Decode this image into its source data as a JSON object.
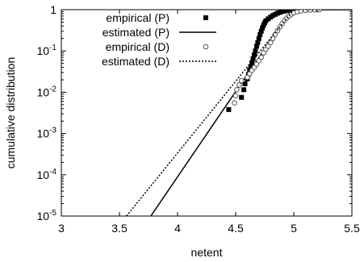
{
  "chart_data": {
    "type": "scatter",
    "xlabel": "netent",
    "ylabel": "cumulative distribution",
    "xlim": [
      3,
      5.5
    ],
    "ylim": [
      1e-05,
      1
    ],
    "yscale": "log",
    "x_ticks": [
      3,
      3.5,
      4,
      4.5,
      5,
      5.5
    ],
    "x_tick_labels": [
      "3",
      "3.5",
      "4",
      "4.5",
      "5",
      "5.5"
    ],
    "y_ticks": [
      1e-05,
      0.0001,
      0.001,
      0.01,
      0.1,
      1
    ],
    "y_tick_labels": [
      {
        "base": "10",
        "exp": "-5"
      },
      {
        "base": "10",
        "exp": "-4"
      },
      {
        "base": "10",
        "exp": "-3"
      },
      {
        "base": "10",
        "exp": "-2"
      },
      {
        "base": "10",
        "exp": "-1"
      },
      {
        "base": "1",
        "exp": ""
      }
    ],
    "grid": false,
    "legend_position": "top-left",
    "series": [
      {
        "name": "empirical (P)",
        "kind": "points",
        "marker": "filled-square",
        "color": "#000000",
        "points": [
          [
            4.44,
            0.0038
          ],
          [
            4.55,
            0.0075
          ],
          [
            4.57,
            0.0115
          ],
          [
            4.58,
            0.016
          ],
          [
            4.6,
            0.021
          ],
          [
            4.61,
            0.027
          ],
          [
            4.62,
            0.034
          ],
          [
            4.63,
            0.042
          ],
          [
            4.64,
            0.052
          ],
          [
            4.65,
            0.065
          ],
          [
            4.66,
            0.08
          ],
          [
            4.67,
            0.1
          ],
          [
            4.68,
            0.13
          ],
          [
            4.69,
            0.16
          ],
          [
            4.7,
            0.2
          ],
          [
            4.71,
            0.25
          ],
          [
            4.72,
            0.3
          ],
          [
            4.73,
            0.36
          ],
          [
            4.74,
            0.42
          ],
          [
            4.75,
            0.48
          ],
          [
            4.76,
            0.54
          ],
          [
            4.78,
            0.6
          ],
          [
            4.8,
            0.66
          ],
          [
            4.82,
            0.72
          ],
          [
            4.84,
            0.77
          ],
          [
            4.86,
            0.82
          ],
          [
            4.88,
            0.86
          ],
          [
            4.9,
            0.9
          ],
          [
            4.92,
            0.93
          ],
          [
            4.95,
            0.96
          ],
          [
            4.98,
            0.98
          ],
          [
            5.01,
            0.99
          ],
          [
            5.05,
            0.995
          ],
          [
            5.1,
            0.998
          ],
          [
            5.2,
            1.0
          ]
        ]
      },
      {
        "name": "estimated (P)",
        "kind": "line",
        "dash": "solid",
        "color": "#000000",
        "points": [
          [
            3.77,
            1e-05
          ],
          [
            4.98,
            1.0
          ],
          [
            5.5,
            1.0
          ]
        ]
      },
      {
        "name": "empirical (D)",
        "kind": "points",
        "marker": "open-circle",
        "color": "#555555",
        "points": [
          [
            4.49,
            0.0055
          ],
          [
            4.5,
            0.0082
          ],
          [
            4.51,
            0.0115
          ],
          [
            4.53,
            0.015
          ],
          [
            4.55,
            0.019
          ],
          [
            4.6,
            0.023
          ],
          [
            4.62,
            0.028
          ],
          [
            4.64,
            0.034
          ],
          [
            4.66,
            0.04
          ],
          [
            4.68,
            0.048
          ],
          [
            4.7,
            0.058
          ],
          [
            4.72,
            0.07
          ],
          [
            4.74,
            0.09
          ],
          [
            4.76,
            0.11
          ],
          [
            4.78,
            0.13
          ],
          [
            4.8,
            0.16
          ],
          [
            4.82,
            0.2
          ],
          [
            4.84,
            0.25
          ],
          [
            4.86,
            0.31
          ],
          [
            4.88,
            0.38
          ],
          [
            4.9,
            0.46
          ],
          [
            4.92,
            0.55
          ],
          [
            4.94,
            0.63
          ],
          [
            4.96,
            0.71
          ],
          [
            4.98,
            0.78
          ],
          [
            5.0,
            0.84
          ],
          [
            5.03,
            0.89
          ],
          [
            5.06,
            0.93
          ],
          [
            5.1,
            0.96
          ],
          [
            5.14,
            0.98
          ],
          [
            5.18,
            0.99
          ],
          [
            5.22,
            1.0
          ]
        ]
      },
      {
        "name": "estimated (D)",
        "kind": "line",
        "dash": "dotted",
        "color": "#000000",
        "points": [
          [
            3.56,
            1e-05
          ],
          [
            5.0,
            1.0
          ],
          [
            5.5,
            1.0
          ]
        ]
      }
    ]
  }
}
